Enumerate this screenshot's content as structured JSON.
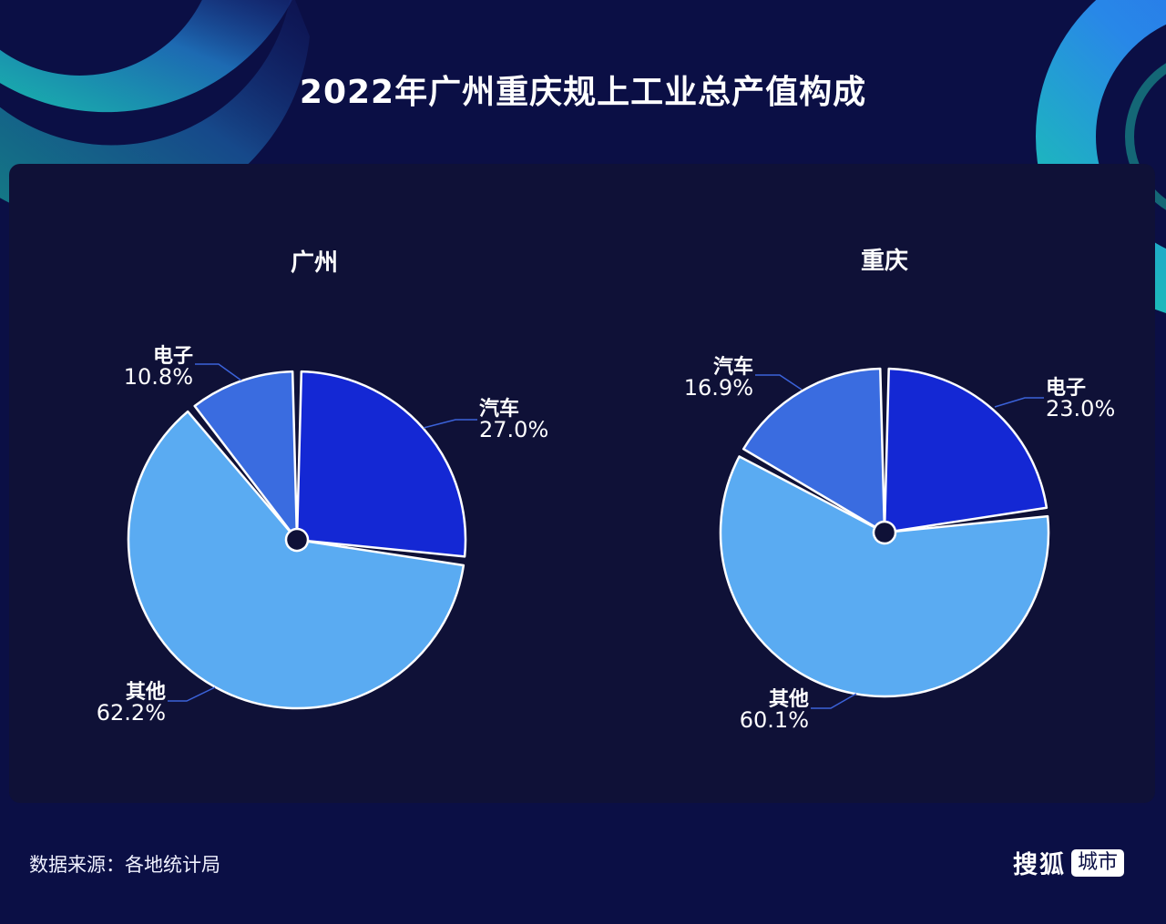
{
  "page": {
    "title": "2022年广州重庆规上工业总产值构成",
    "source": "数据来源：各地统计局",
    "brand": {
      "name": "搜狐",
      "tag": "城市"
    }
  },
  "colors": {
    "background": "#0b0f45",
    "panel": "#0f1137",
    "汽车": "#1428d4",
    "电子": "#3a6ce0",
    "其他": "#5aabf2",
    "汽车_cq": "#3a6ce0",
    "电子_cq": "#1428d4",
    "leader_line": "#3b62d9"
  },
  "chart_data": [
    {
      "type": "pie",
      "title": "广州",
      "start_angle_deg": 0,
      "direction": "clockwise",
      "categories": [
        "汽车",
        "其他",
        "电子"
      ],
      "values": [
        27.0,
        62.2,
        10.8
      ],
      "labels": [
        "27.0%",
        "62.2%",
        "10.8%"
      ],
      "colors": [
        "#1428d4",
        "#5aabf2",
        "#3a6ce0"
      ]
    },
    {
      "type": "pie",
      "title": "重庆",
      "start_angle_deg": 0,
      "direction": "clockwise",
      "categories": [
        "电子",
        "其他",
        "汽车"
      ],
      "values": [
        23.0,
        60.1,
        16.9
      ],
      "labels": [
        "23.0%",
        "60.1%",
        "16.9%"
      ],
      "colors": [
        "#1428d4",
        "#5aabf2",
        "#3a6ce0"
      ]
    }
  ]
}
